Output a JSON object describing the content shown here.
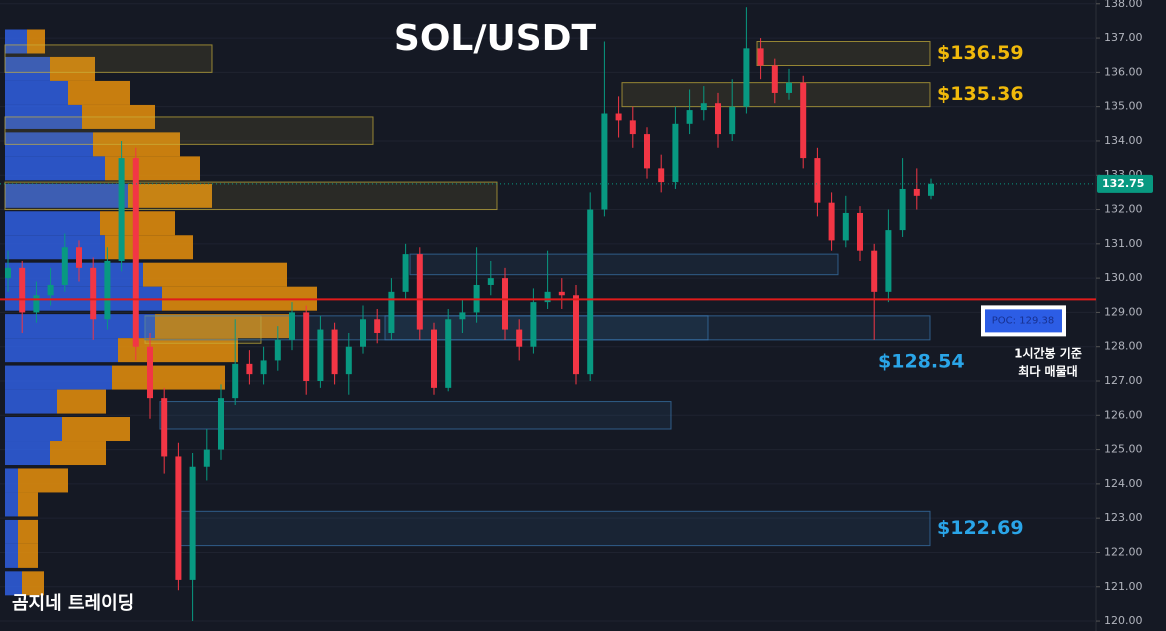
{
  "chart_data": {
    "type": "candlestick",
    "title": "SOL/USDT",
    "watermark": "곰지네 트레이딩",
    "annotations": [
      "1시간봉 기준",
      "최다 매물대"
    ],
    "up_color": "#089981",
    "down_color": "#f23645",
    "ylim": [
      119.71,
      138.11
    ],
    "yticks": [
      {
        "value": 120,
        "label": "120.00"
      },
      {
        "value": 121,
        "label": "121.00"
      },
      {
        "value": 122,
        "label": "122.00"
      },
      {
        "value": 123,
        "label": "123.00"
      },
      {
        "value": 124,
        "label": "124.00"
      },
      {
        "value": 125,
        "label": "125.00"
      },
      {
        "value": 126,
        "label": "126.00"
      },
      {
        "value": 127,
        "label": "127.00"
      },
      {
        "value": 128,
        "label": "128.00"
      },
      {
        "value": 129,
        "label": "129.00"
      },
      {
        "value": 130,
        "label": "130.00"
      },
      {
        "value": 131,
        "label": "131.00"
      },
      {
        "value": 132,
        "label": "132.00"
      },
      {
        "value": 133,
        "label": "133.00"
      },
      {
        "value": 134,
        "label": "134.00"
      },
      {
        "value": 135,
        "label": "135.00"
      },
      {
        "value": 136,
        "label": "136.00"
      },
      {
        "value": 137,
        "label": "137.00"
      },
      {
        "value": 138,
        "label": "138.00"
      }
    ],
    "grid": true,
    "open": [
      130.0,
      130.3,
      129.0,
      129.5,
      129.8,
      130.9,
      130.3,
      128.8,
      130.5,
      133.5,
      128.0,
      126.5,
      124.8,
      121.2,
      124.5,
      125.0,
      126.5,
      127.5,
      127.2,
      127.6,
      128.2,
      129.0,
      127.0,
      128.5,
      127.2,
      128.0,
      128.8,
      128.4,
      129.6,
      130.7,
      128.5,
      126.8,
      128.8,
      129.0,
      129.8,
      130.0,
      128.5,
      128.0,
      129.3,
      129.6,
      129.5,
      127.2,
      132.0,
      134.8,
      134.6,
      134.2,
      133.2,
      132.8,
      134.5,
      134.9,
      135.1,
      134.2,
      135.0,
      136.7,
      136.2,
      135.4,
      135.7,
      133.5,
      132.2,
      131.1,
      131.9,
      130.8,
      129.6,
      131.4,
      132.6,
      132.4
    ],
    "high": [
      130.8,
      130.5,
      129.9,
      130.3,
      131.3,
      131.1,
      130.6,
      130.9,
      134.0,
      133.8,
      128.4,
      126.8,
      125.2,
      124.9,
      125.6,
      126.9,
      128.8,
      127.9,
      128.0,
      128.6,
      129.3,
      129.2,
      128.9,
      128.7,
      128.4,
      129.2,
      129.1,
      130.0,
      131.0,
      130.9,
      128.7,
      129.1,
      129.4,
      130.9,
      130.5,
      130.3,
      128.8,
      129.7,
      130.8,
      130.0,
      129.8,
      132.5,
      136.9,
      135.3,
      135.0,
      134.4,
      133.6,
      135.0,
      135.5,
      135.6,
      135.4,
      135.8,
      137.9,
      137.0,
      136.4,
      136.1,
      135.9,
      133.8,
      132.5,
      132.4,
      132.1,
      131.0,
      132.0,
      133.5,
      133.2,
      132.9
    ],
    "low": [
      129.6,
      128.4,
      128.7,
      129.2,
      129.6,
      129.9,
      128.2,
      128.5,
      130.2,
      127.6,
      125.9,
      124.3,
      120.9,
      120.0,
      124.1,
      124.7,
      126.3,
      126.9,
      126.9,
      127.3,
      127.9,
      126.6,
      126.8,
      126.9,
      126.6,
      127.8,
      128.1,
      128.2,
      129.4,
      128.2,
      126.6,
      126.7,
      128.4,
      128.7,
      129.5,
      128.2,
      127.6,
      127.8,
      129.1,
      129.1,
      126.9,
      127.0,
      131.8,
      134.1,
      133.8,
      132.9,
      132.5,
      132.6,
      134.2,
      134.6,
      133.8,
      134.0,
      134.8,
      135.8,
      135.1,
      135.2,
      133.2,
      131.8,
      130.8,
      130.9,
      130.5,
      128.2,
      129.3,
      131.2,
      132.0,
      132.3
    ],
    "close": [
      130.3,
      129.0,
      129.5,
      129.8,
      130.9,
      130.3,
      128.8,
      130.5,
      133.5,
      128.0,
      126.5,
      124.8,
      121.2,
      124.5,
      125.0,
      126.5,
      127.5,
      127.2,
      127.6,
      128.2,
      129.0,
      127.0,
      128.5,
      127.2,
      128.0,
      128.8,
      128.4,
      129.6,
      130.7,
      128.5,
      126.8,
      128.8,
      129.0,
      129.8,
      130.0,
      128.5,
      128.0,
      129.3,
      129.6,
      129.5,
      127.2,
      132.0,
      134.8,
      134.6,
      134.2,
      133.2,
      132.8,
      134.5,
      134.9,
      135.1,
      134.2,
      135.0,
      136.7,
      136.2,
      135.4,
      135.7,
      133.5,
      132.2,
      131.1,
      131.9,
      130.8,
      129.6,
      131.4,
      132.6,
      132.4,
      132.75
    ],
    "volume_profile": {
      "levels": [
        136.9,
        136.1,
        135.4,
        134.7,
        133.9,
        133.2,
        132.4,
        131.6,
        130.9,
        130.1,
        129.4,
        128.6,
        127.9,
        127.1,
        126.4,
        125.6,
        124.9,
        124.1,
        123.4,
        122.6,
        121.9,
        121.1
      ],
      "buy": [
        22,
        45,
        63,
        77,
        88,
        100,
        123,
        95,
        100,
        138,
        157,
        150,
        113,
        107,
        52,
        57,
        45,
        13,
        13,
        13,
        13,
        17
      ],
      "sell": [
        18,
        45,
        62,
        73,
        87,
        95,
        84,
        75,
        88,
        144,
        155,
        135,
        120,
        113,
        49,
        68,
        56,
        50,
        20,
        20,
        20,
        22
      ],
      "buy_color": "#2f5fe0",
      "sell_color": "#e8900c"
    },
    "zones": [
      {
        "low": 136.2,
        "high": 136.9,
        "color": "#c9b03a",
        "price": {
          "value": 136.59,
          "label": "$136.59"
        }
      },
      {
        "low": 135.0,
        "high": 135.7,
        "color": "#c9b03a",
        "price": {
          "value": 135.36,
          "label": "$135.36"
        }
      },
      {
        "low": 128.2,
        "high": 128.9,
        "color": "#3a78b0",
        "price": {
          "value": 128.54,
          "label": "$128.54"
        }
      },
      {
        "low": 122.2,
        "high": 123.2,
        "color": "#3a78b0",
        "price": {
          "value": 122.69,
          "label": "$122.69"
        }
      },
      {
        "low": 136.0,
        "high": 136.8,
        "color": "#c9b03a"
      },
      {
        "low": 133.9,
        "high": 134.7,
        "color": "#c9b03a"
      },
      {
        "low": 132.0,
        "high": 132.8,
        "color": "#c9b03a"
      },
      {
        "low": 128.1,
        "high": 128.9,
        "color": "#c9b03a"
      },
      {
        "low": 130.1,
        "high": 130.7,
        "color": "#3a78b0"
      },
      {
        "low": 128.2,
        "high": 128.9,
        "color": "#3a78b0"
      },
      {
        "low": 125.6,
        "high": 126.4,
        "color": "#3a78b0"
      }
    ],
    "poc": {
      "value": 129.38,
      "label": "POC: 129.38",
      "color": "#e01b1b"
    }
  }
}
